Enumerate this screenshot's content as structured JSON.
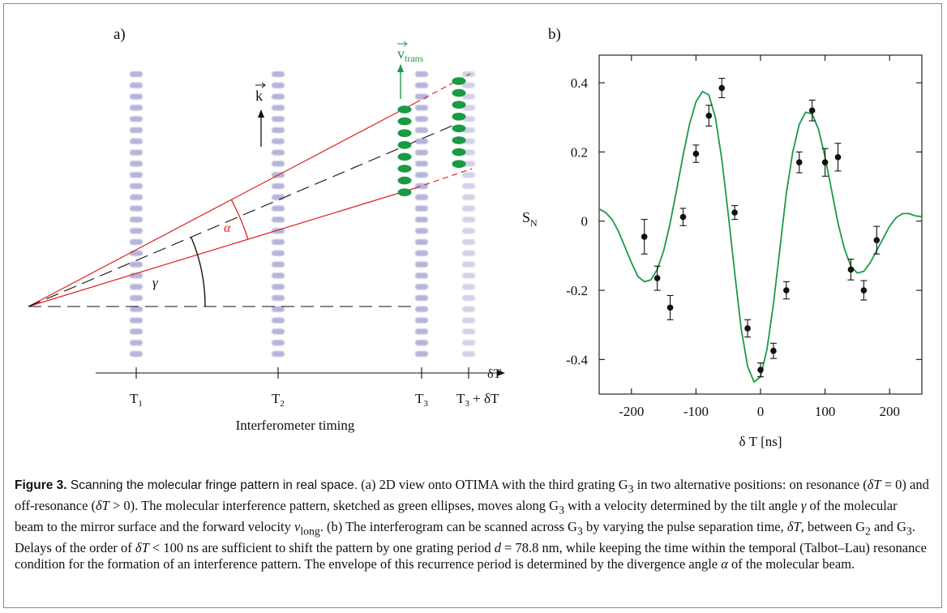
{
  "panel_a": {
    "label": "a)",
    "timing_labels": [
      {
        "main": "T",
        "sub": "1"
      },
      {
        "main": "T",
        "sub": "2"
      },
      {
        "main": "T",
        "sub": "3"
      },
      {
        "main": "T",
        "sub": "3",
        "suffix": " + δT"
      }
    ],
    "axis_arrow_label": "δT",
    "xlabel": "Interferometer timing",
    "k_label": "k",
    "v_label": "v",
    "v_sub": "trans",
    "alpha_label": "α",
    "gamma_label": "γ",
    "colors": {
      "grating": "#9c9ccc",
      "beam": "#e02020",
      "molecule": "#1a9a45",
      "axis": "#111111"
    }
  },
  "panel_b": {
    "label": "b)"
  },
  "chart_data": {
    "type": "scatter",
    "xlabel": "δ T [ns]",
    "ylabel": "S",
    "ylabel_sub": "N",
    "xlim": [
      -250,
      250
    ],
    "ylim": [
      -0.5,
      0.48
    ],
    "xticks": [
      -200,
      -100,
      0,
      100,
      200
    ],
    "yticks": [
      0.4,
      0.2,
      0,
      -0.2,
      -0.4
    ],
    "ytick_labels": [
      "0.4",
      "0.2",
      "0",
      "-0.2",
      "-0.4"
    ],
    "grid": false,
    "series": [
      {
        "kind": "points-with-error-bars",
        "color": "#111111",
        "x": [
          -180,
          -160,
          -140,
          -120,
          -100,
          -80,
          -60,
          -40,
          -20,
          0,
          20,
          40,
          60,
          80,
          100,
          120,
          140,
          160,
          180
        ],
        "y": [
          -0.045,
          -0.165,
          -0.25,
          0.012,
          0.195,
          0.305,
          0.385,
          0.025,
          -0.31,
          -0.43,
          -0.375,
          -0.2,
          0.17,
          0.32,
          0.17,
          0.185,
          -0.14,
          -0.2,
          -0.055
        ],
        "err": [
          0.05,
          0.035,
          0.035,
          0.025,
          0.025,
          0.03,
          0.028,
          0.02,
          0.025,
          0.02,
          0.022,
          0.025,
          0.03,
          0.03,
          0.04,
          0.04,
          0.03,
          0.028,
          0.04
        ]
      },
      {
        "kind": "fit-curve",
        "color": "#1a9a45",
        "x": [
          -250,
          -240,
          -230,
          -220,
          -210,
          -200,
          -190,
          -180,
          -170,
          -160,
          -150,
          -140,
          -130,
          -120,
          -110,
          -100,
          -90,
          -80,
          -70,
          -60,
          -50,
          -40,
          -30,
          -20,
          -10,
          0,
          10,
          20,
          30,
          40,
          50,
          60,
          70,
          80,
          90,
          100,
          110,
          120,
          130,
          140,
          150,
          160,
          170,
          180,
          190,
          200,
          210,
          220,
          230,
          240,
          250
        ],
        "y": [
          0.035,
          0.025,
          0.005,
          -0.03,
          -0.075,
          -0.12,
          -0.16,
          -0.175,
          -0.17,
          -0.14,
          -0.085,
          -0.005,
          0.09,
          0.19,
          0.28,
          0.345,
          0.375,
          0.365,
          0.3,
          0.18,
          0.02,
          -0.15,
          -0.31,
          -0.42,
          -0.465,
          -0.45,
          -0.37,
          -0.24,
          -0.08,
          0.08,
          0.2,
          0.28,
          0.315,
          0.31,
          0.265,
          0.185,
          0.09,
          -0.005,
          -0.08,
          -0.13,
          -0.15,
          -0.145,
          -0.12,
          -0.085,
          -0.05,
          -0.015,
          0.01,
          0.022,
          0.022,
          0.015,
          0.013
        ]
      }
    ]
  },
  "caption": {
    "label": "Figure 3.",
    "title": " Scanning the molecular fringe pattern in real space.",
    "text_1": " (a) 2D view onto OTIMA with the third grating G",
    "s1": "3",
    "text_2": " in two alternative positions: on resonance (",
    "m1": "δT",
    "text_3": " = 0) and off-resonance (",
    "m2": "δT",
    "text_4": " > 0). The molecular interference pattern, sketched as green ellipses, moves along G",
    "s2": "3",
    "text_5": " with a velocity determined by the tilt angle ",
    "m3": "γ",
    "text_6": " of the molecular beam to the mirror surface and the forward velocity ",
    "m4": "v",
    "s3": "long",
    "text_7": ". (b) The interferogram can be scanned across G",
    "s4": "3",
    "text_8": " by varying the pulse separation time, ",
    "m5": "δT",
    "text_9": ", between G",
    "s5": "2",
    "text_10": " and G",
    "s6": "3",
    "text_11": ". Delays of the order of ",
    "m6": "δT",
    "text_12": " < 100 ns are sufficient to shift the pattern by one grating period ",
    "m7": "d",
    "text_13": " = 78.8 nm, while keeping the time within the temporal (Talbot–Lau) resonance condition for the formation of an interference pattern. The envelope of this recurrence period is determined by the divergence angle ",
    "m8": "α",
    "text_14": " of the molecular beam."
  }
}
